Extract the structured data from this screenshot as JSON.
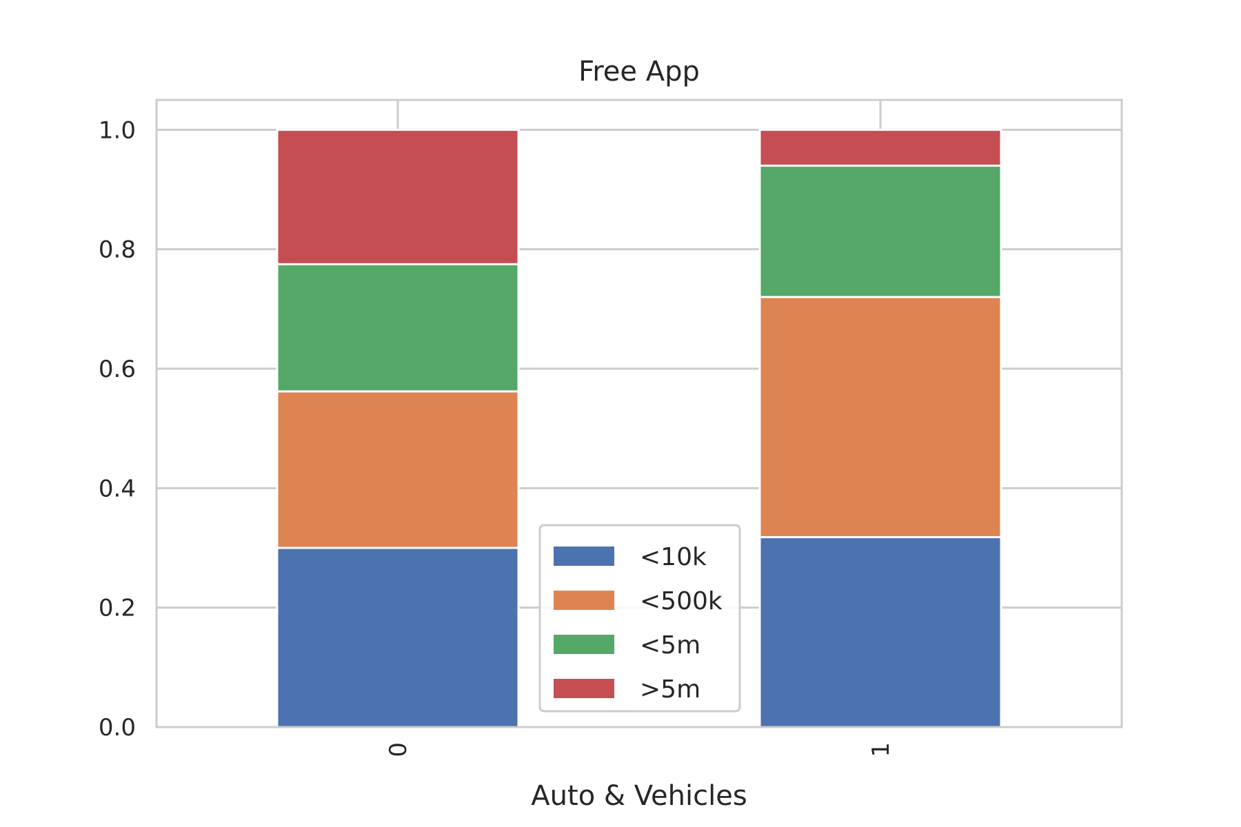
{
  "chart_data": {
    "type": "bar",
    "stacked": true,
    "title": "Free App",
    "xlabel": "Auto & Vehicles",
    "ylabel": "",
    "categories": [
      "0",
      "1"
    ],
    "series": [
      {
        "name": "<10k",
        "values": [
          0.3,
          0.318
        ],
        "color": "#4c72b0"
      },
      {
        "name": "<500k",
        "values": [
          0.262,
          0.402
        ],
        "color": "#dd8452"
      },
      {
        "name": "<5m",
        "values": [
          0.213,
          0.22
        ],
        "color": "#55a868"
      },
      {
        "name": ">5m",
        "values": [
          0.225,
          0.06
        ],
        "color": "#c44e52"
      }
    ],
    "ylim": [
      0,
      1.05
    ],
    "yticks": [
      "0.0",
      "0.2",
      "0.4",
      "0.6",
      "0.8",
      "1.0"
    ],
    "ytick_values": [
      0,
      0.2,
      0.4,
      0.6,
      0.8,
      1.0
    ],
    "x_tick_rotation": "vertical",
    "grid": true,
    "legend": "bottom-center"
  }
}
